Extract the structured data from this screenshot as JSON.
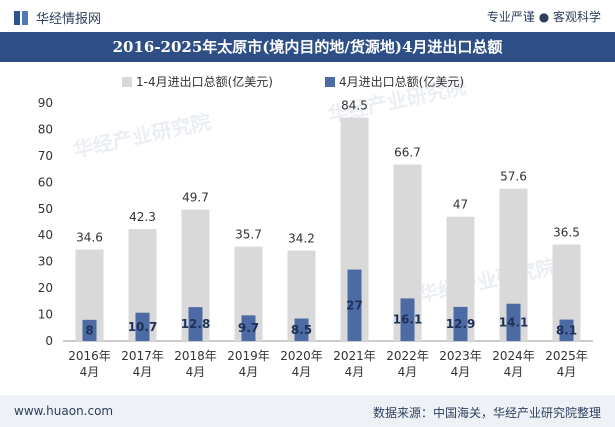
{
  "header": {
    "brand": "华经情报网",
    "tagline": "专业严谨 ● 客观科学",
    "title": "2016-2025年太原市(境内目的地/货源地)4月进出口总额"
  },
  "footer": {
    "website": "www.huaon.com",
    "source": "数据来源：中国海关，华经产业研究院整理"
  },
  "watermark": {
    "text": "华经产业研究院",
    "url": "www.huaon.com"
  },
  "colors": {
    "series_total": "#d9d9d9",
    "series_april": "#4c6aa4",
    "title_bg": "#2e4f86"
  },
  "chart_data": {
    "type": "bar",
    "categories": [
      "2016年\n4月",
      "2017年\n4月",
      "2018年\n4月",
      "2019年\n4月",
      "2020年\n4月",
      "2021年\n4月",
      "2022年\n4月",
      "2023年\n4月",
      "2024年\n4月",
      "2025年\n4月"
    ],
    "series": [
      {
        "name": "1-4月进出口总额(亿美元)",
        "values": [
          34.6,
          42.3,
          49.7,
          35.7,
          34.2,
          84.5,
          66.7,
          47,
          57.6,
          36.5
        ],
        "labels": [
          "34.6",
          "42.3",
          "49.7",
          "35.7",
          "34.2",
          "84.5",
          "66.7",
          "47",
          "57.6",
          "36.5"
        ]
      },
      {
        "name": "4月进出口总额(亿美元)",
        "values": [
          8,
          10.7,
          12.8,
          9.7,
          8.5,
          27,
          16.1,
          12.9,
          14.1,
          8.1
        ],
        "labels": [
          "8",
          "10.7",
          "12.8",
          "9.7",
          "8.5",
          "27",
          "16.1",
          "12.9",
          "14.1",
          "8.1"
        ]
      }
    ],
    "yticks": [
      "0",
      "10",
      "20",
      "30",
      "40",
      "50",
      "60",
      "70",
      "80",
      "90"
    ],
    "ylim": [
      0,
      90
    ],
    "legend_position": "top-center",
    "grid": false
  }
}
